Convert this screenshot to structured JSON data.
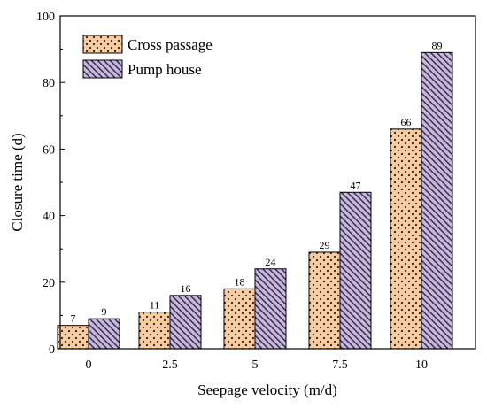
{
  "chart_data": {
    "type": "bar",
    "xlabel": "Seepage velocity (m/d)",
    "ylabel": "Closure time (d)",
    "categories": [
      "0",
      "2.5",
      "5",
      "7.5",
      "10"
    ],
    "ylim": [
      0,
      100
    ],
    "yticks": [
      0,
      20,
      40,
      60,
      80,
      100
    ],
    "grid": false,
    "legend_position": "top-left",
    "series": [
      {
        "name": "Cross passage",
        "values": [
          7,
          11,
          18,
          29,
          66
        ],
        "data_labels": [
          "7",
          "11",
          "18",
          "29",
          "66"
        ],
        "color": "#f9cba0",
        "pattern": "dots"
      },
      {
        "name": "Pump house",
        "values": [
          9,
          16,
          24,
          47,
          89
        ],
        "data_labels": [
          "9",
          "16",
          "24",
          "47",
          "89"
        ],
        "color": "#c8b6e0",
        "pattern": "diagonal-hatch"
      }
    ]
  }
}
